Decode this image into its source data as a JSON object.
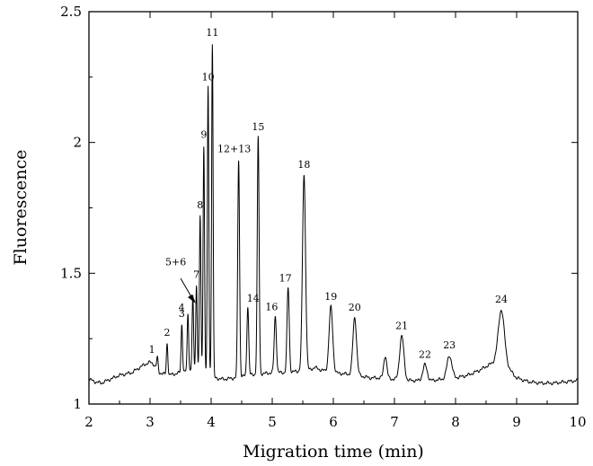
{
  "chart_data": {
    "type": "line",
    "title": "",
    "xlabel": "Migration time (min)",
    "ylabel": "Fluorescence",
    "xlim": [
      2,
      10
    ],
    "ylim": [
      1,
      2.5
    ],
    "x_ticks": [
      {
        "value": 2,
        "label": "2"
      },
      {
        "value": 3,
        "label": "3"
      },
      {
        "value": 4,
        "label": "4"
      },
      {
        "value": 5,
        "label": "5"
      },
      {
        "value": 6,
        "label": "6"
      },
      {
        "value": 7,
        "label": "7"
      },
      {
        "value": 8,
        "label": "8"
      },
      {
        "value": 9,
        "label": "9"
      },
      {
        "value": 10,
        "label": "10"
      }
    ],
    "y_ticks": [
      {
        "value": 1,
        "label": "1"
      },
      {
        "value": 1.5,
        "label": "1.5"
      },
      {
        "value": 2,
        "label": "2"
      },
      {
        "value": 2.5,
        "label": "2.5"
      }
    ],
    "grid": false,
    "baseline": [
      [
        2.0,
        1.095
      ],
      [
        2.1,
        1.085
      ],
      [
        2.2,
        1.08
      ],
      [
        2.3,
        1.09
      ],
      [
        2.4,
        1.1
      ],
      [
        2.5,
        1.11
      ],
      [
        2.6,
        1.115
      ],
      [
        2.7,
        1.12
      ],
      [
        2.8,
        1.135
      ],
      [
        2.9,
        1.15
      ],
      [
        3.0,
        1.16
      ],
      [
        3.05,
        1.155
      ],
      [
        3.15,
        1.12
      ],
      [
        3.3,
        1.11
      ],
      [
        3.5,
        1.12
      ],
      [
        3.7,
        1.13
      ],
      [
        3.9,
        1.11
      ],
      [
        4.05,
        1.1
      ],
      [
        4.2,
        1.095
      ],
      [
        4.4,
        1.1
      ],
      [
        4.6,
        1.11
      ],
      [
        4.8,
        1.115
      ],
      [
        5.0,
        1.12
      ],
      [
        5.2,
        1.12
      ],
      [
        5.4,
        1.125
      ],
      [
        5.6,
        1.13
      ],
      [
        5.7,
        1.14
      ],
      [
        5.8,
        1.13
      ],
      [
        6.0,
        1.12
      ],
      [
        6.2,
        1.115
      ],
      [
        6.4,
        1.11
      ],
      [
        6.6,
        1.1
      ],
      [
        6.8,
        1.1
      ],
      [
        7.0,
        1.095
      ],
      [
        7.2,
        1.09
      ],
      [
        7.4,
        1.09
      ],
      [
        7.6,
        1.09
      ],
      [
        7.8,
        1.095
      ],
      [
        8.0,
        1.1
      ],
      [
        8.2,
        1.11
      ],
      [
        8.4,
        1.13
      ],
      [
        8.55,
        1.15
      ],
      [
        8.65,
        1.16
      ],
      [
        8.85,
        1.14
      ],
      [
        9.0,
        1.1
      ],
      [
        9.2,
        1.085
      ],
      [
        9.4,
        1.08
      ],
      [
        9.6,
        1.08
      ],
      [
        9.8,
        1.085
      ],
      [
        10.0,
        1.09
      ]
    ],
    "peaks": [
      {
        "x": 3.12,
        "y": 1.178,
        "w": 0.012,
        "label": "1"
      },
      {
        "x": 3.28,
        "y": 1.233,
        "w": 0.012,
        "label": "2"
      },
      {
        "x": 3.52,
        "y": 1.305,
        "w": 0.012,
        "label": "3"
      },
      {
        "x": 3.62,
        "y": 1.345,
        "w": 0.012,
        "label": "4"
      },
      {
        "x": 3.7,
        "y": 1.41,
        "w": 0.012,
        "label": "5+6"
      },
      {
        "x": 3.76,
        "y": 1.455,
        "w": 0.012,
        "label": "7"
      },
      {
        "x": 3.82,
        "y": 1.72,
        "w": 0.012,
        "label": "8"
      },
      {
        "x": 3.88,
        "y": 1.99,
        "w": 0.012,
        "label": "9"
      },
      {
        "x": 3.95,
        "y": 2.21,
        "w": 0.012,
        "label": "10"
      },
      {
        "x": 4.02,
        "y": 2.38,
        "w": 0.012,
        "label": "11"
      },
      {
        "x": 4.45,
        "y": 1.935,
        "w": 0.015,
        "label": "12+13"
      },
      {
        "x": 4.6,
        "y": 1.375,
        "w": 0.015,
        "label": "14"
      },
      {
        "x": 4.77,
        "y": 2.02,
        "w": 0.015,
        "label": "15"
      },
      {
        "x": 5.05,
        "y": 1.335,
        "w": 0.018,
        "label": "16"
      },
      {
        "x": 5.26,
        "y": 1.445,
        "w": 0.018,
        "label": "17"
      },
      {
        "x": 5.52,
        "y": 1.875,
        "w": 0.025,
        "label": "18"
      },
      {
        "x": 5.96,
        "y": 1.37,
        "w": 0.03,
        "label": "19"
      },
      {
        "x": 6.35,
        "y": 1.33,
        "w": 0.03,
        "label": "20"
      },
      {
        "x": 6.85,
        "y": 1.185,
        "w": 0.025,
        "label": ""
      },
      {
        "x": 7.12,
        "y": 1.26,
        "w": 0.035,
        "label": "21"
      },
      {
        "x": 7.5,
        "y": 1.15,
        "w": 0.035,
        "label": "22"
      },
      {
        "x": 7.9,
        "y": 1.185,
        "w": 0.04,
        "label": "23"
      },
      {
        "x": 8.75,
        "y": 1.36,
        "w": 0.05,
        "label": "24"
      }
    ]
  }
}
